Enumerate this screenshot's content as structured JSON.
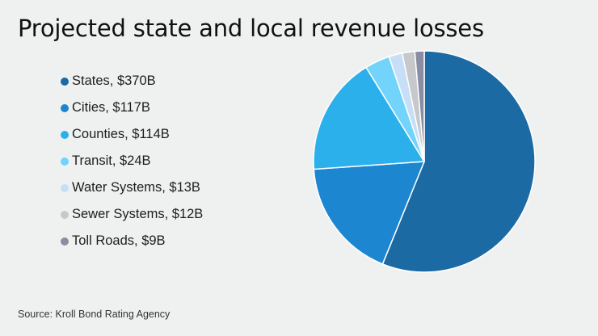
{
  "chart_data": {
    "type": "pie",
    "title": "Projected state and local revenue losses",
    "unit": "$B",
    "start": "top",
    "direction": "clockwise",
    "legend_position": "left",
    "slices": [
      {
        "label": "States",
        "value": 370,
        "legend": "States, $370B",
        "color": "#1c6aa3"
      },
      {
        "label": "Cities",
        "value": 117,
        "legend": "Cities, $117B",
        "color": "#1c86d0"
      },
      {
        "label": "Counties",
        "value": 114,
        "legend": "Counties, $114B",
        "color": "#2bb0ec"
      },
      {
        "label": "Transit",
        "value": 24,
        "legend": "Transit, $24B",
        "color": "#72d3fb"
      },
      {
        "label": "Water Systems",
        "value": 13,
        "legend": "Water Systems, $13B",
        "color": "#c6dff7"
      },
      {
        "label": "Sewer Systems",
        "value": 12,
        "legend": "Sewer Systems, $12B",
        "color": "#c6c8cc"
      },
      {
        "label": "Toll Roads",
        "value": 9,
        "legend": "Toll Roads, $9B",
        "color": "#8a8ea3"
      }
    ]
  },
  "source": "Source: Kroll Bond Rating Agency"
}
